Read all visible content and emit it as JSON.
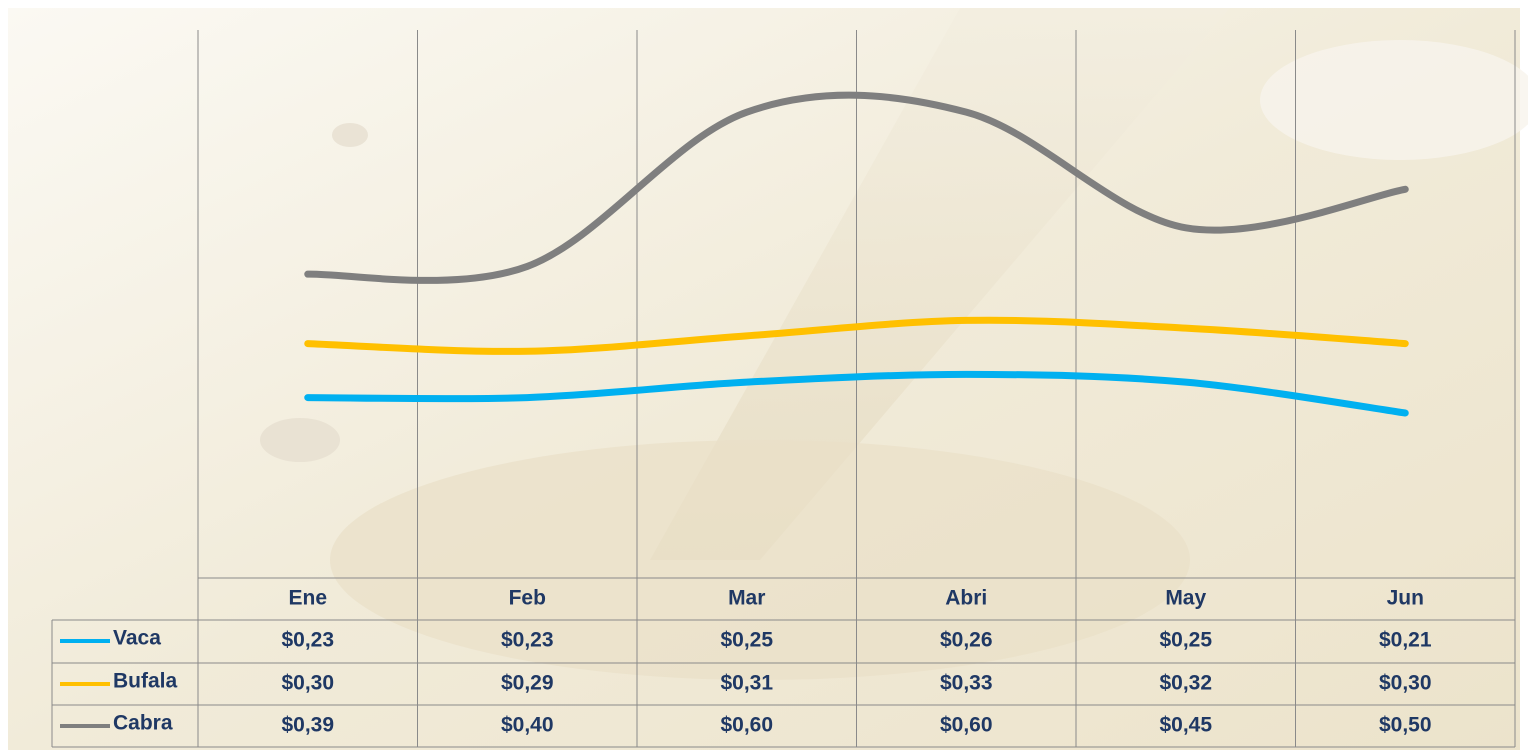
{
  "chart_data": {
    "type": "line",
    "categories": [
      "Ene",
      "Feb",
      "Mar",
      "Abri",
      "May",
      "Jun"
    ],
    "series": [
      {
        "name": "Vaca",
        "color": "#00b0f0",
        "values": [
          0.23,
          0.23,
          0.25,
          0.26,
          0.25,
          0.21
        ],
        "value_labels": [
          "$0,23",
          "$0,23",
          "$0,25",
          "$0,26",
          "$0,25",
          "$0,21"
        ]
      },
      {
        "name": "Bufala",
        "color": "#ffc000",
        "values": [
          0.3,
          0.29,
          0.31,
          0.33,
          0.32,
          0.3
        ],
        "value_labels": [
          "$0,30",
          "$0,29",
          "$0,31",
          "$0,33",
          "$0,32",
          "$0,30"
        ]
      },
      {
        "name": "Cabra",
        "color": "#7f7f7f",
        "values": [
          0.39,
          0.4,
          0.6,
          0.6,
          0.45,
          0.5
        ],
        "value_labels": [
          "$0,39",
          "$0,40",
          "$0,60",
          "$0,60",
          "$0,45",
          "$0,50"
        ]
      }
    ],
    "ylim": [
      0,
      0.7
    ]
  }
}
